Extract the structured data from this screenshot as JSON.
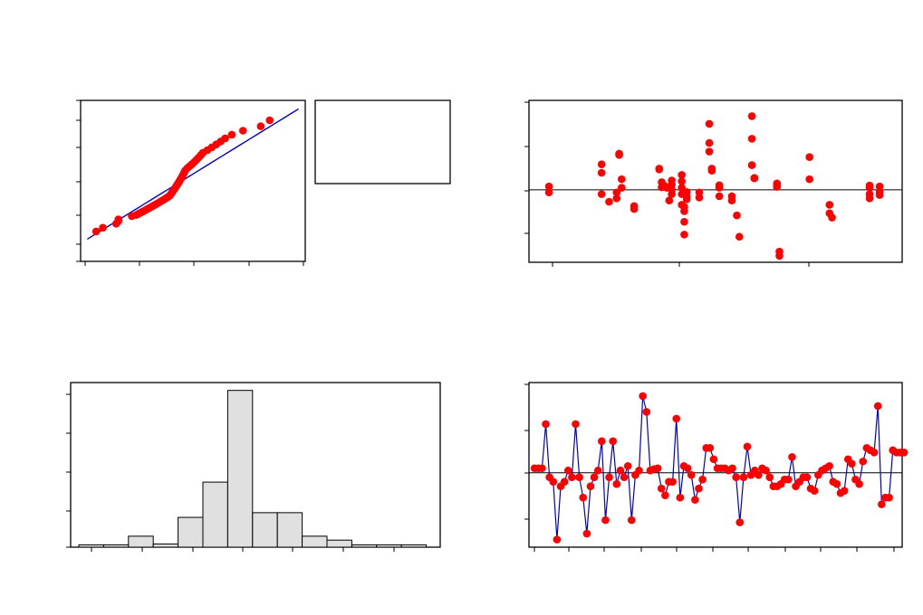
{
  "chart_data": [
    {
      "id": "normal-probability-plot",
      "type": "scatter",
      "title": "",
      "xlabel": "",
      "ylabel": "",
      "legend": "right",
      "xlim": [
        -4.3,
        5.8
      ],
      "ylim": [
        0.1,
        99.9
      ],
      "x": [
        -3.6,
        -3.3,
        -2.7,
        -2.6,
        -2.6,
        -2.0,
        -1.8,
        -1.7,
        -1.6,
        -1.5,
        -1.4,
        -1.3,
        -1.2,
        -1.1,
        -1.0,
        -0.9,
        -0.8,
        -0.7,
        -0.6,
        -0.5,
        -0.4,
        -0.3,
        -0.25,
        -0.2,
        -0.15,
        -0.1,
        -0.05,
        0.0,
        0.05,
        0.1,
        0.15,
        0.2,
        0.25,
        0.3,
        0.35,
        0.4,
        0.5,
        0.6,
        0.7,
        0.8,
        0.9,
        1.0,
        1.1,
        1.2,
        1.4,
        1.6,
        1.8,
        2.0,
        2.2,
        2.5,
        3.0,
        3.8,
        4.2
      ],
      "series": [
        {
          "name": "",
          "values": [
            2.6,
            3.6,
            5.0,
            6.2,
            7.0,
            8.8,
            9.5,
            10.3,
            11.1,
            12.0,
            12.9,
            14.0,
            15.0,
            16.2,
            17.4,
            18.6,
            20.0,
            21.5,
            23.0,
            24.6,
            26.4,
            28.3,
            30.3,
            32.4,
            34.6,
            36.9,
            39.3,
            41.8,
            44.4,
            47.1,
            49.9,
            52.8,
            55.8,
            58.9,
            62.1,
            65.4,
            68.8,
            71.3,
            73.8,
            76.3,
            78.8,
            81.3,
            83.7,
            86.0,
            88.1,
            90.1,
            91.9,
            93.5,
            94.9,
            96.2,
            97.3,
            98.2,
            99.0
          ]
        }
      ],
      "fit_line": {
        "x": [
          -4.0,
          5.5
        ],
        "y": [
          0.3,
          99.9
        ]
      }
    },
    {
      "id": "versus-fits",
      "type": "scatter",
      "title": "",
      "xlabel": "",
      "ylabel": "",
      "reference_line_y": 0,
      "xlim": [
        15.3,
        30.2
      ],
      "ylim": [
        -1.7,
        2.1
      ],
      "x": [
        16.1,
        16.1,
        18.2,
        18.2,
        18.2,
        18.5,
        18.8,
        18.8,
        18.9,
        18.9,
        19.0,
        19.0,
        19.5,
        19.5,
        20.5,
        20.5,
        20.6,
        20.6,
        20.7,
        20.8,
        20.9,
        21.0,
        21.0,
        21.0,
        21.0,
        21.4,
        21.4,
        21.4,
        21.4,
        21.4,
        21.5,
        21.5,
        21.5,
        21.5,
        21.6,
        21.6,
        21.6,
        22.1,
        22.1,
        22.5,
        22.5,
        22.5,
        22.6,
        22.6,
        22.9,
        22.9,
        22.9,
        23.4,
        23.4,
        23.6,
        23.7,
        24.2,
        24.2,
        24.2,
        24.3,
        24.3,
        25.2,
        25.2,
        25.2,
        25.3,
        25.3,
        26.5,
        26.5,
        27.3,
        27.3,
        27.4,
        28.9,
        28.9,
        28.9,
        28.9,
        29.3,
        29.3,
        29.3
      ],
      "series": [
        {
          "name": "",
          "values": [
            0.08,
            -0.06,
            0.6,
            0.4,
            -0.1,
            -0.28,
            -0.06,
            -0.2,
            0.85,
            0.82,
            0.25,
            0.05,
            -0.38,
            -0.45,
            0.5,
            0.48,
            0.18,
            0.06,
            0.1,
            0.05,
            -0.25,
            0.22,
            0.12,
            0.0,
            -0.1,
            0.35,
            0.2,
            0.05,
            -0.1,
            -0.35,
            -0.4,
            -0.5,
            -0.75,
            -1.05,
            -0.05,
            -0.15,
            -0.22,
            -0.06,
            -0.18,
            1.55,
            1.1,
            0.9,
            0.45,
            0.5,
            0.11,
            0.05,
            -0.15,
            -0.15,
            -0.25,
            -0.6,
            -1.1,
            1.73,
            1.2,
            0.58,
            0.28,
            0.27,
            0.15,
            0.1,
            0.07,
            -1.45,
            -1.55,
            0.77,
            0.25,
            -0.35,
            -0.55,
            -0.65,
            -0.2,
            0.1,
            0.05,
            -0.1,
            0.08,
            -0.05,
            -0.12
          ]
        }
      ]
    },
    {
      "id": "histogram",
      "type": "bar",
      "title": "",
      "xlabel": "",
      "ylabel": "",
      "bins": 14,
      "ylim": [
        0,
        21
      ],
      "values": [
        0.3,
        0.3,
        1.4,
        0.4,
        3.8,
        8.3,
        20.0,
        4.4,
        4.4,
        1.4,
        0.9,
        0.3,
        0.3,
        0.3
      ]
    },
    {
      "id": "versus-order",
      "type": "line",
      "title": "",
      "xlabel": "",
      "ylabel": "",
      "reference_line_y": 0,
      "xlim": [
        -0.5,
        99.5
      ],
      "ylim": [
        -1.65,
        2.0
      ],
      "x": [
        1,
        2,
        3,
        4,
        5,
        6,
        7,
        8,
        9,
        10,
        11,
        12,
        13,
        14,
        15,
        16,
        17,
        18,
        19,
        20,
        21,
        22,
        23,
        24,
        25,
        26,
        27,
        28,
        29,
        30,
        31,
        32,
        33,
        34,
        35,
        36,
        37,
        38,
        39,
        40,
        41,
        42,
        43,
        44,
        45,
        46,
        47,
        48,
        49,
        50,
        51,
        52,
        53,
        54,
        55,
        56,
        57,
        58,
        59,
        60,
        61,
        62,
        63,
        64,
        65,
        66,
        67,
        68,
        69,
        70,
        71,
        72,
        73,
        74,
        75,
        76,
        77,
        78,
        79,
        80,
        81,
        82,
        83,
        84,
        85,
        86,
        87,
        88,
        89,
        90,
        91,
        92,
        93,
        94,
        95,
        96,
        97,
        98,
        99,
        100
      ],
      "series": [
        {
          "name": "",
          "values": [
            0.1,
            0.1,
            0.1,
            1.08,
            -0.1,
            -0.2,
            -1.48,
            -0.3,
            -0.2,
            0.05,
            -0.1,
            1.08,
            -0.1,
            -0.55,
            -1.35,
            -0.3,
            -0.1,
            0.05,
            0.7,
            -1.05,
            -0.1,
            0.7,
            -0.25,
            0.05,
            -0.1,
            0.15,
            -1.05,
            -0.05,
            0.05,
            1.7,
            1.35,
            0.05,
            0.08,
            0.1,
            -0.35,
            -0.5,
            -0.2,
            -0.2,
            1.2,
            -0.55,
            0.15,
            0.1,
            -0.05,
            -0.6,
            -0.35,
            -0.15,
            0.55,
            0.55,
            0.3,
            0.1,
            0.1,
            0.1,
            0.05,
            0.1,
            -0.1,
            -1.1,
            -0.1,
            0.58,
            -0.05,
            0.05,
            -0.05,
            0.1,
            0.05,
            -0.1,
            -0.3,
            -0.3,
            -0.25,
            -0.15,
            -0.15,
            0.35,
            -0.3,
            -0.2,
            -0.1,
            -0.1,
            -0.35,
            -0.4,
            -0.05,
            0.05,
            0.1,
            0.15,
            -0.2,
            -0.25,
            -0.45,
            -0.4,
            0.3,
            0.2,
            -0.15,
            -0.25,
            0.25,
            0.55,
            0.5,
            0.45,
            1.48,
            -0.7,
            -0.55,
            -0.55,
            0.5,
            0.45,
            0.45,
            0.45
          ]
        }
      ]
    }
  ]
}
